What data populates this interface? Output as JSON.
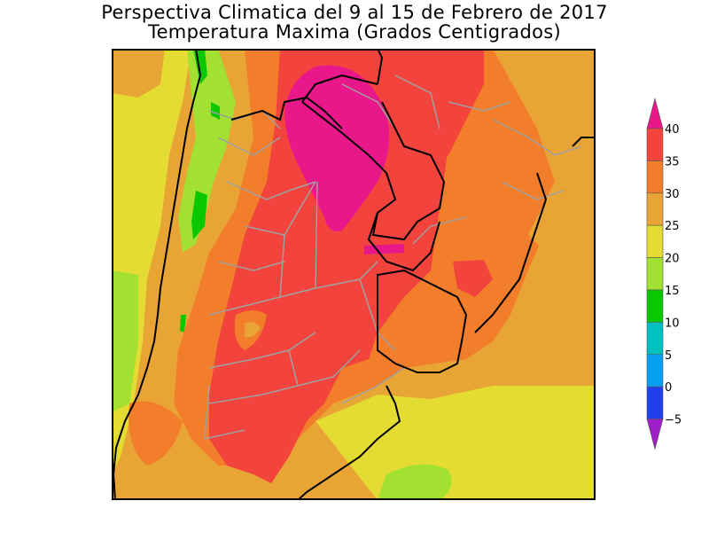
{
  "title": {
    "line1": "Perspectiva Climatica del 9 al 15 de Febrero de 2017",
    "line2": "Temperatura Maxima (Grados Centigrados)"
  },
  "legend": {
    "unit": "Grados Centigrados",
    "ticks": [
      "40",
      "35",
      "30",
      "25",
      "20",
      "15",
      "10",
      "5",
      "0",
      "−5"
    ],
    "bands": [
      {
        "range": "> 40",
        "color": "#e8188a"
      },
      {
        "range": "35 to 40",
        "color": "#f2443c"
      },
      {
        "range": "30 to 35",
        "color": "#f27d2a"
      },
      {
        "range": "25 to 30",
        "color": "#e8a536"
      },
      {
        "range": "20 to 25",
        "color": "#e4dc32"
      },
      {
        "range": "15 to 20",
        "color": "#a2e032"
      },
      {
        "range": "10 to 15",
        "color": "#0ac800"
      },
      {
        "range": "5 to 10",
        "color": "#00c0c0"
      },
      {
        "range": "0 to 5",
        "color": "#08a0f0"
      },
      {
        "range": "-5 to 0",
        "color": "#2040f0"
      },
      {
        "range": "< -5",
        "color": "#a020c8"
      }
    ]
  },
  "map": {
    "field_variable": "Temperatura Maxima",
    "region": "Sur de Sudamerica",
    "overlays": [
      "country-borders",
      "province-borders",
      "coastline"
    ]
  }
}
